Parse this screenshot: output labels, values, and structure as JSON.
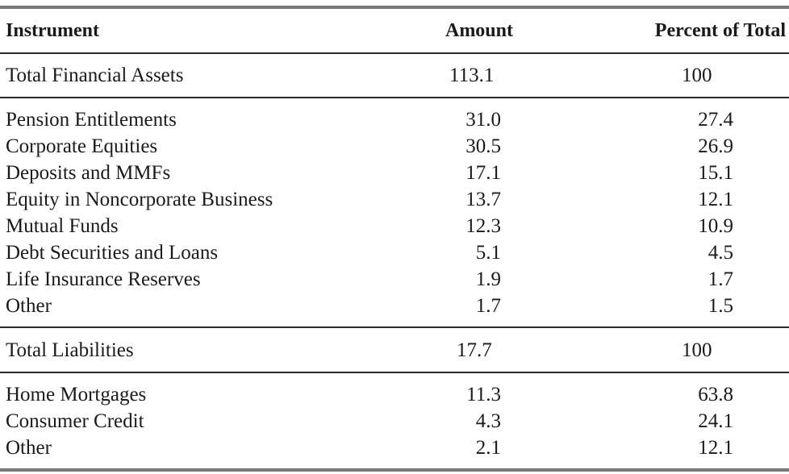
{
  "table": {
    "headers": {
      "instrument": "Instrument",
      "amount": "Amount",
      "percent": "Percent of Total"
    },
    "assets_total": {
      "name": "Total Financial Assets",
      "amount": "113.1",
      "percent": "100"
    },
    "assets": [
      {
        "name": "Pension Entitlements",
        "amount": "31.0",
        "percent": "27.4"
      },
      {
        "name": "Corporate Equities",
        "amount": "30.5",
        "percent": "26.9"
      },
      {
        "name": "Deposits and MMFs",
        "amount": "17.1",
        "percent": "15.1"
      },
      {
        "name": "Equity in Noncorporate Business",
        "amount": "13.7",
        "percent": "12.1"
      },
      {
        "name": "Mutual Funds",
        "amount": "12.3",
        "percent": "10.9"
      },
      {
        "name": "Debt Securities and Loans",
        "amount": "5.1",
        "percent": "4.5"
      },
      {
        "name": "Life Insurance Reserves",
        "amount": "1.9",
        "percent": "1.7"
      },
      {
        "name": "Other",
        "amount": "1.7",
        "percent": "1.5"
      }
    ],
    "liabilities_total": {
      "name": "Total Liabilities",
      "amount": "17.7",
      "percent": "100"
    },
    "liabilities": [
      {
        "name": "Home Mortgages",
        "amount": "11.3",
        "percent": "63.8"
      },
      {
        "name": "Consumer Credit",
        "amount": "4.3",
        "percent": "24.1"
      },
      {
        "name": "Other",
        "amount": "2.1",
        "percent": "12.1"
      }
    ]
  }
}
